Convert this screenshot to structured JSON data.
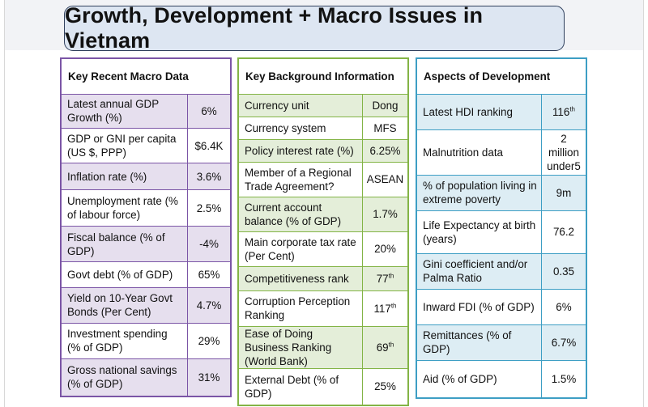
{
  "title": "Growth, Development + Macro Issues in Vietnam",
  "panel_macro": {
    "heading": "Key Recent Macro Data",
    "rows": [
      {
        "label": "Latest annual GDP Growth (%)",
        "value": "6%"
      },
      {
        "label": "GDP or GNI per capita (US $, PPP)",
        "value": "$6.4K"
      },
      {
        "label": "Inflation rate (%)",
        "value": "3.6%"
      },
      {
        "label": "Unemployment rate (% of labour force)",
        "value": "2.5%"
      },
      {
        "label": "Fiscal balance (% of GDP)",
        "value": "-4%"
      },
      {
        "label": "Govt debt (% of GDP)",
        "value": "65%"
      },
      {
        "label": "Yield on 10-Year Govt Bonds (Per Cent)",
        "value": "4.7%"
      },
      {
        "label": "Investment spending (% of GDP)",
        "value": "29%"
      },
      {
        "label": "Gross national savings (% of GDP)",
        "value": "31%"
      }
    ]
  },
  "panel_background": {
    "heading": "Key Background Information",
    "rows": [
      {
        "label": "Currency unit",
        "value": "Dong",
        "sup": ""
      },
      {
        "label": "Currency system",
        "value": "MFS",
        "sup": ""
      },
      {
        "label": "Policy interest rate (%)",
        "value": "6.25%",
        "sup": ""
      },
      {
        "label": "Member of a Regional Trade Agreement?",
        "value": "ASEAN",
        "sup": ""
      },
      {
        "label": "Current account balance (% of GDP)",
        "value": "1.7%",
        "sup": ""
      },
      {
        "label": "Main corporate tax rate (Per Cent)",
        "value": "20%",
        "sup": ""
      },
      {
        "label": "Competitiveness rank",
        "value": "77",
        "sup": "th"
      },
      {
        "label": "Corruption Perception Ranking",
        "value": "117",
        "sup": "th"
      },
      {
        "label": "Ease of Doing Business Ranking (World Bank)",
        "value": "69",
        "sup": "th"
      },
      {
        "label": "External Debt (% of GDP)",
        "value": "25%",
        "sup": ""
      }
    ]
  },
  "panel_development": {
    "heading": "Aspects of Development",
    "rows": [
      {
        "label": "Latest HDI ranking",
        "value": "116",
        "sup": "th"
      },
      {
        "label": "Malnutrition data",
        "value": "2 million under5",
        "sup": ""
      },
      {
        "label": "% of population living in extreme poverty",
        "value": "9m",
        "sup": ""
      },
      {
        "label": "Life Expectancy at birth (years)",
        "value": "76.2",
        "sup": ""
      },
      {
        "label": "Gini coefficient and/or Palma Ratio",
        "value": "0.35",
        "sup": ""
      },
      {
        "label": "Inward FDI (% of GDP)",
        "value": "6%",
        "sup": ""
      },
      {
        "label": "Remittances (% of GDP)",
        "value": "6.7%",
        "sup": ""
      },
      {
        "label": "Aid (% of GDP)",
        "value": "1.5%",
        "sup": ""
      }
    ]
  }
}
